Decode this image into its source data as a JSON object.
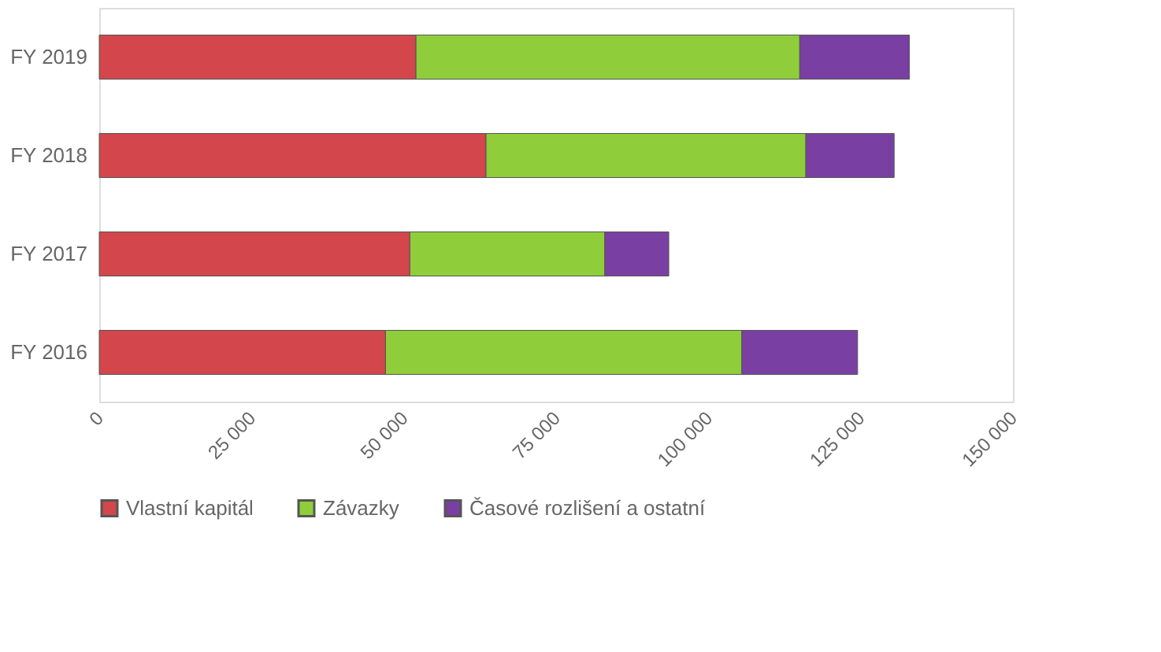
{
  "chart_data": {
    "type": "bar",
    "orientation": "horizontal",
    "stacked": true,
    "categories": [
      "FY 2019",
      "FY 2018",
      "FY 2017",
      "FY 2016"
    ],
    "series": [
      {
        "name": "Vlastní kapitál",
        "color": "#d2464c",
        "values": [
          52000,
          63500,
          51000,
          47000
        ]
      },
      {
        "name": "Závazky",
        "color": "#8fce3a",
        "values": [
          63000,
          52500,
          32000,
          58500
        ]
      },
      {
        "name": "Časové rozlišení a ostatní",
        "color": "#7a3fa3",
        "values": [
          18000,
          14500,
          10500,
          19000
        ]
      }
    ],
    "xlim": [
      0,
      150000
    ],
    "xticks": [
      0,
      {
        "value": 25000,
        "label": "25 000"
      },
      {
        "value": 50000,
        "label": "50 000"
      },
      {
        "value": 75000,
        "label": "75 000"
      },
      {
        "value": 100000,
        "label": "100 000"
      },
      {
        "value": 125000,
        "label": "125 000"
      },
      {
        "value": 150000,
        "label": "150 000"
      }
    ],
    "grid": false,
    "legend": "bottom"
  }
}
